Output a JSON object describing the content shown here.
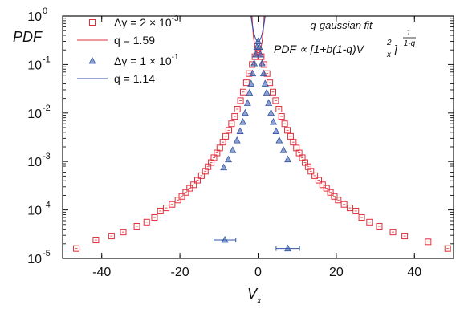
{
  "chart_data": {
    "type": "scatter",
    "ylabel": "PDF",
    "xlabel": "V",
    "xlabel_sub": "x",
    "xlim": [
      -50,
      50
    ],
    "ylim_log10": [
      -5,
      0
    ],
    "y_scale": "log",
    "x_ticks": [
      -40,
      -20,
      0,
      20,
      40
    ],
    "x_tick_labels": [
      "-40",
      "-20",
      "0",
      "20",
      "40"
    ],
    "y_ticks_exp": [
      -5,
      -4,
      -3,
      -2,
      -1,
      0
    ],
    "y_tick_base": "10",
    "y_tick_exp_labels": [
      "-5",
      "-4",
      "-3",
      "-2",
      "-1",
      "0"
    ],
    "annotation": {
      "line1": "q-gaussian fit",
      "line2": "PDF ∝ [1+b(1-q)V",
      "sub": "x",
      "sup": "2",
      "close": "]",
      "exp_num": "1",
      "exp_den": "1-q"
    },
    "colors": {
      "red": "#e0303a",
      "blue": "#3355a5"
    },
    "series": [
      {
        "name": "Δγ = 2 × 10⁻³",
        "legend_parts": [
          "Δγ = 2 × 10",
          "-3"
        ],
        "marker": "square",
        "color": "#e0303a",
        "points": [
          [
            -46.5,
            1.6e-05
          ],
          [
            -41.5,
            2.4e-05
          ],
          [
            -37.5,
            2.9e-05
          ],
          [
            -34.5,
            3.5e-05
          ],
          [
            -31.0,
            4.6e-05
          ],
          [
            -28.5,
            5.6e-05
          ],
          [
            -26.5,
            7e-05
          ],
          [
            -25.0,
            9.5e-05
          ],
          [
            -23.5,
            0.00011
          ],
          [
            -22.0,
            0.00013
          ],
          [
            -20.5,
            0.00016
          ],
          [
            -19.5,
            0.00019
          ],
          [
            -18.5,
            0.00023
          ],
          [
            -17.5,
            0.00028
          ],
          [
            -16.5,
            0.00033
          ],
          [
            -15.5,
            0.00041
          ],
          [
            -14.5,
            0.00051
          ],
          [
            -13.5,
            0.00063
          ],
          [
            -12.8,
            0.00078
          ],
          [
            -12.0,
            0.00095
          ],
          [
            -11.3,
            0.0012
          ],
          [
            -10.5,
            0.0015
          ],
          [
            -9.8,
            0.0019
          ],
          [
            -9.0,
            0.0025
          ],
          [
            -8.3,
            0.0033
          ],
          [
            -7.5,
            0.0044
          ],
          [
            -6.8,
            0.006
          ],
          [
            -6.0,
            0.0085
          ],
          [
            -5.3,
            0.012
          ],
          [
            -4.5,
            0.018
          ],
          [
            -3.8,
            0.027
          ],
          [
            -3.0,
            0.042
          ],
          [
            -2.3,
            0.065
          ],
          [
            -1.5,
            0.1
          ],
          [
            -0.8,
            0.145
          ],
          [
            0.0,
            0.175
          ],
          [
            0.8,
            0.145
          ],
          [
            1.5,
            0.1
          ],
          [
            2.3,
            0.065
          ],
          [
            3.0,
            0.042
          ],
          [
            3.8,
            0.027
          ],
          [
            4.5,
            0.018
          ],
          [
            5.3,
            0.012
          ],
          [
            6.0,
            0.0085
          ],
          [
            6.8,
            0.006
          ],
          [
            7.5,
            0.0044
          ],
          [
            8.3,
            0.0033
          ],
          [
            9.0,
            0.0025
          ],
          [
            9.8,
            0.0019
          ],
          [
            10.5,
            0.0015
          ],
          [
            11.3,
            0.0012
          ],
          [
            12.0,
            0.00095
          ],
          [
            12.8,
            0.00078
          ],
          [
            13.5,
            0.00063
          ],
          [
            14.5,
            0.00051
          ],
          [
            15.5,
            0.00041
          ],
          [
            16.5,
            0.00033
          ],
          [
            17.5,
            0.00028
          ],
          [
            18.5,
            0.00023
          ],
          [
            19.5,
            0.00019
          ],
          [
            20.5,
            0.00016
          ],
          [
            22.0,
            0.00013
          ],
          [
            23.5,
            0.00011
          ],
          [
            25.0,
            9.5e-05
          ],
          [
            26.5,
            7e-05
          ],
          [
            28.5,
            5.6e-05
          ],
          [
            31.0,
            4.6e-05
          ],
          [
            34.5,
            3.5e-05
          ],
          [
            37.5,
            2.9e-05
          ],
          [
            43.5,
            2.2e-05
          ],
          [
            48.5,
            1.6e-05
          ]
        ]
      },
      {
        "name": "q = 1.59",
        "legend_parts": [
          "q = 1.59"
        ],
        "kind": "fit",
        "color": "#e0303a",
        "fit": {
          "q": 1.59,
          "peak": 0.175,
          "b": 0.45
        }
      },
      {
        "name": "Δγ = 1 × 10⁻¹",
        "legend_parts": [
          "Δγ = 1 × 10",
          "-1"
        ],
        "marker": "triangle",
        "color": "#3355a5",
        "points": [
          [
            -8.8,
            0.00075
          ],
          [
            -7.6,
            0.0011
          ],
          [
            -6.5,
            0.0017
          ],
          [
            -5.4,
            0.0027
          ],
          [
            -4.6,
            0.0042
          ],
          [
            -3.9,
            0.0065
          ],
          [
            -3.3,
            0.01
          ],
          [
            -2.7,
            0.016
          ],
          [
            -2.2,
            0.026
          ],
          [
            -1.8,
            0.04
          ],
          [
            -1.4,
            0.065
          ],
          [
            -1.0,
            0.105
          ],
          [
            -0.6,
            0.16
          ],
          [
            -0.3,
            0.23
          ],
          [
            0.0,
            0.3
          ],
          [
            0.3,
            0.23
          ],
          [
            0.6,
            0.16
          ],
          [
            1.0,
            0.105
          ],
          [
            1.4,
            0.065
          ],
          [
            1.8,
            0.04
          ],
          [
            2.2,
            0.026
          ],
          [
            2.7,
            0.016
          ],
          [
            3.3,
            0.01
          ],
          [
            3.9,
            0.0065
          ],
          [
            4.6,
            0.0042
          ],
          [
            5.4,
            0.0027
          ],
          [
            6.5,
            0.0017
          ],
          [
            7.6,
            0.0011
          ]
        ],
        "error_points": [
          {
            "x": -8.5,
            "y": 2.4e-05,
            "xerr": 2.8
          },
          {
            "x": 7.6,
            "y": 1.6e-05,
            "xerr": 3.0
          }
        ]
      },
      {
        "name": "q = 1.14",
        "legend_parts": [
          "q = 1.14"
        ],
        "kind": "fit",
        "color": "#3355a5",
        "fit": {
          "q": 1.14,
          "peak": 0.3,
          "b": 0.34
        }
      }
    ]
  }
}
